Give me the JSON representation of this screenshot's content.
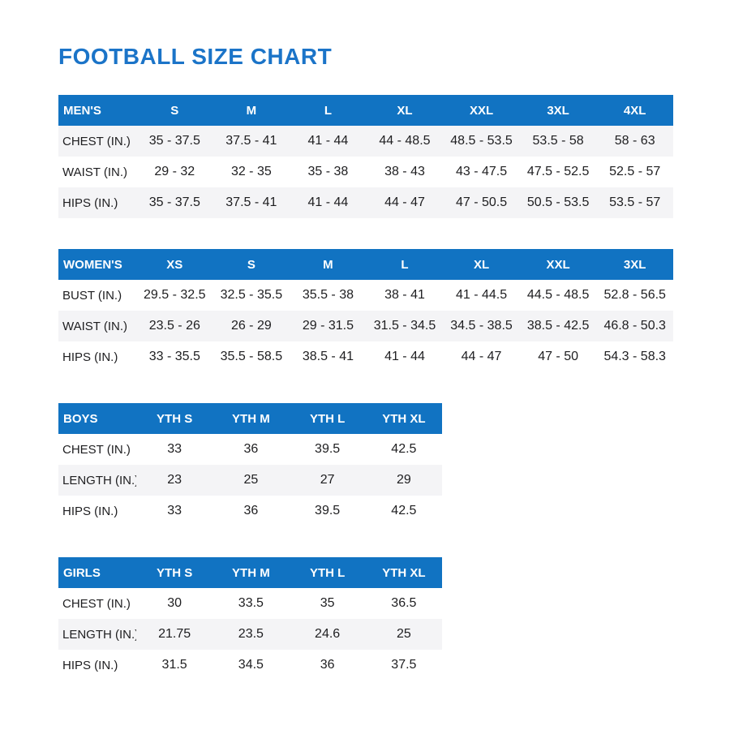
{
  "page": {
    "title": "FOOTBALL SIZE CHART"
  },
  "colors": {
    "title_blue": "#1b74c8",
    "header_blue": "#1173c2",
    "stripe_gray": "#f4f4f6",
    "text_dark": "#1e1e20"
  },
  "tables": [
    {
      "id": "mens",
      "header": {
        "label": "MEN'S",
        "sizes": [
          "S",
          "M",
          "L",
          "XL",
          "XXL",
          "3XL",
          "4XL"
        ]
      },
      "shaded_rows": [
        0,
        2
      ],
      "rows": [
        {
          "label": "CHEST (IN.)",
          "values": [
            "35 - 37.5",
            "37.5 - 41",
            "41 - 44",
            "44 - 48.5",
            "48.5 - 53.5",
            "53.5 - 58",
            "58 - 63"
          ]
        },
        {
          "label": "WAIST (IN.)",
          "values": [
            "29 - 32",
            "32 - 35",
            "35 - 38",
            "38 - 43",
            "43 - 47.5",
            "47.5 - 52.5",
            "52.5 - 57"
          ]
        },
        {
          "label": "HIPS (IN.)",
          "values": [
            "35 - 37.5",
            "37.5 - 41",
            "41 - 44",
            "44 - 47",
            "47 - 50.5",
            "50.5 - 53.5",
            "53.5 - 57"
          ]
        }
      ]
    },
    {
      "id": "womens",
      "header": {
        "label": "WOMEN'S",
        "sizes": [
          "XS",
          "S",
          "M",
          "L",
          "XL",
          "XXL",
          "3XL"
        ]
      },
      "shaded_rows": [
        1
      ],
      "rows": [
        {
          "label": "BUST (IN.)",
          "values": [
            "29.5 - 32.5",
            "32.5 - 35.5",
            "35.5 - 38",
            "38 - 41",
            "41 - 44.5",
            "44.5 - 48.5",
            "52.8 - 56.5"
          ]
        },
        {
          "label": "WAIST (IN.)",
          "values": [
            "23.5 - 26",
            "26 - 29",
            "29 - 31.5",
            "31.5 - 34.5",
            "34.5 - 38.5",
            "38.5 - 42.5",
            "46.8 - 50.3"
          ]
        },
        {
          "label": "HIPS (IN.)",
          "values": [
            "33 - 35.5",
            "35.5 - 58.5",
            "38.5 - 41",
            "41 - 44",
            "44 - 47",
            "47 - 50",
            "54.3 - 58.3"
          ]
        }
      ]
    },
    {
      "id": "boys",
      "header": {
        "label": "BOYS",
        "sizes": [
          "YTH S",
          "YTH M",
          "YTH L",
          "YTH XL"
        ]
      },
      "shaded_rows": [
        1
      ],
      "rows": [
        {
          "label": "CHEST (IN.)",
          "values": [
            "33",
            "36",
            "39.5",
            "42.5"
          ]
        },
        {
          "label": "LENGTH (IN.)",
          "values": [
            "23",
            "25",
            "27",
            "29"
          ]
        },
        {
          "label": "HIPS (IN.)",
          "values": [
            "33",
            "36",
            "39.5",
            "42.5"
          ]
        }
      ]
    },
    {
      "id": "girls",
      "header": {
        "label": "GIRLS",
        "sizes": [
          "YTH S",
          "YTH M",
          "YTH L",
          "YTH XL"
        ]
      },
      "shaded_rows": [
        1
      ],
      "rows": [
        {
          "label": "CHEST (IN.)",
          "values": [
            "30",
            "33.5",
            "35",
            "36.5"
          ]
        },
        {
          "label": "LENGTH (IN.)",
          "values": [
            "21.75",
            "23.5",
            "24.6",
            "25"
          ]
        },
        {
          "label": "HIPS (IN.)",
          "values": [
            "31.5",
            "34.5",
            "36",
            "37.5"
          ]
        }
      ]
    }
  ]
}
